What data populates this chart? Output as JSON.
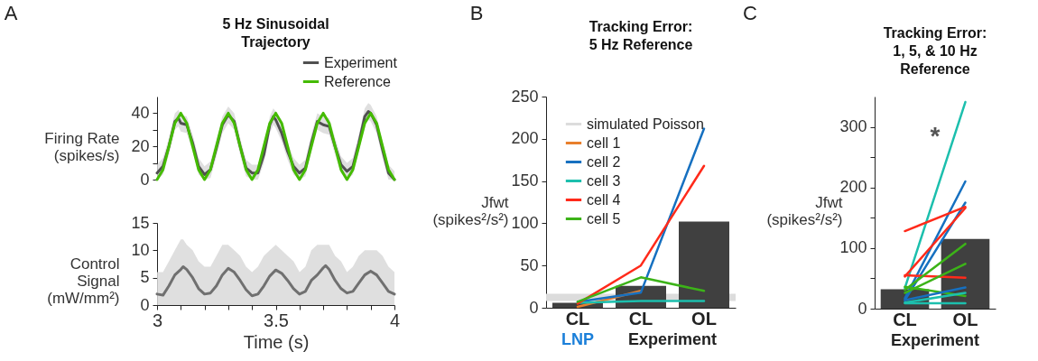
{
  "chart_data": [
    {
      "type": "line",
      "title": "5 Hz Sinusoidal\nTrajectory",
      "ylabel": "Firing Rate\n(spikes/s)",
      "annotations": [
        "A"
      ],
      "legend": "top right",
      "tick_labels": "y",
      "xlim": [
        3,
        4
      ],
      "ylim": [
        0,
        50
      ],
      "yticks": [
        0,
        {
          "value": 10,
          "label": null
        },
        20,
        {
          "value": 30,
          "label": null
        },
        40
      ],
      "series": [
        {
          "name": "Experiment",
          "color": "#505050",
          "x": [
            3,
            3.025,
            3.05,
            3.075,
            3.09,
            3.1,
            3.125,
            3.15,
            3.175,
            3.2,
            3.225,
            3.25,
            3.275,
            3.3,
            3.325,
            3.35,
            3.375,
            3.4,
            3.425,
            3.45,
            3.475,
            3.49,
            3.5,
            3.525,
            3.55,
            3.575,
            3.6,
            3.625,
            3.65,
            3.675,
            3.7,
            3.725,
            3.75,
            3.775,
            3.8,
            3.825,
            3.85,
            3.875,
            3.89,
            3.9,
            3.925,
            3.95,
            3.975,
            4
          ],
          "values": [
            4,
            8,
            20,
            35,
            37,
            34,
            33,
            22,
            8,
            3,
            6,
            19,
            33,
            39,
            35,
            20,
            7,
            4,
            4,
            15,
            33,
            38,
            36,
            28,
            17,
            8,
            4,
            7,
            22,
            35,
            33,
            32,
            20,
            9,
            5,
            8,
            22,
            38,
            41,
            40,
            33,
            18,
            4,
            0
          ],
          "lower": [
            0,
            3,
            15,
            30,
            32,
            29,
            28,
            17,
            3,
            0,
            1,
            14,
            28,
            34,
            30,
            15,
            2,
            0,
            0,
            10,
            28,
            33,
            31,
            23,
            12,
            3,
            0,
            2,
            17,
            30,
            28,
            27,
            15,
            4,
            0,
            3,
            17,
            33,
            36,
            35,
            28,
            13,
            0,
            0
          ],
          "upper": [
            9,
            13,
            25,
            40,
            42,
            39,
            38,
            27,
            13,
            8,
            11,
            24,
            38,
            44,
            40,
            25,
            12,
            9,
            9,
            20,
            38,
            43,
            41,
            33,
            22,
            13,
            9,
            12,
            27,
            40,
            38,
            37,
            25,
            14,
            10,
            13,
            27,
            43,
            46,
            45,
            38,
            23,
            9,
            5
          ]
        },
        {
          "name": "Reference",
          "color": "#44bb00",
          "x": [
            3,
            3.025,
            3.05,
            3.075,
            3.1,
            3.125,
            3.15,
            3.175,
            3.2,
            3.225,
            3.25,
            3.275,
            3.3,
            3.325,
            3.35,
            3.375,
            3.4,
            3.425,
            3.45,
            3.475,
            3.5,
            3.525,
            3.55,
            3.575,
            3.6,
            3.625,
            3.65,
            3.675,
            3.7,
            3.725,
            3.75,
            3.775,
            3.8,
            3.825,
            3.85,
            3.875,
            3.9,
            3.925,
            3.95,
            3.975,
            4
          ],
          "values": [
            0,
            6,
            20,
            34,
            40,
            34,
            20,
            6,
            0,
            6,
            20,
            34,
            40,
            34,
            20,
            6,
            0,
            6,
            20,
            34,
            40,
            34,
            20,
            6,
            0,
            6,
            20,
            34,
            40,
            34,
            20,
            6,
            0,
            6,
            20,
            34,
            40,
            34,
            20,
            6,
            0
          ]
        }
      ]
    },
    {
      "type": "line",
      "xlabel": "Time (s)",
      "ylabel": "Control\nSignal\n(mW/mm²)",
      "xlim": [
        3,
        4
      ],
      "ylim": [
        0,
        15
      ],
      "yticks": [
        0,
        5,
        10,
        15
      ],
      "xticks": [
        3,
        {
          "value": 3.1,
          "label": null
        },
        {
          "value": 3.2,
          "label": null
        },
        {
          "value": 3.3,
          "label": null
        },
        {
          "value": 3.4,
          "label": null
        },
        3.5,
        {
          "value": 3.6,
          "label": null
        },
        {
          "value": 3.7,
          "label": null
        },
        {
          "value": 3.8,
          "label": null
        },
        {
          "value": 3.9,
          "label": null
        },
        4
      ],
      "series": [
        {
          "color": "#707070",
          "x": [
            3,
            3.025,
            3.05,
            3.075,
            3.1,
            3.11,
            3.125,
            3.15,
            3.175,
            3.2,
            3.225,
            3.25,
            3.275,
            3.3,
            3.325,
            3.35,
            3.375,
            3.4,
            3.425,
            3.45,
            3.475,
            3.5,
            3.525,
            3.55,
            3.575,
            3.6,
            3.625,
            3.65,
            3.675,
            3.7,
            3.71,
            3.725,
            3.75,
            3.775,
            3.8,
            3.825,
            3.85,
            3.875,
            3.9,
            3.925,
            3.95,
            3.975,
            4
          ],
          "values": [
            2,
            1.8,
            3.5,
            5.5,
            6.5,
            7,
            6.5,
            5,
            3,
            2,
            2.2,
            3.5,
            5.5,
            6.7,
            6,
            4.5,
            2.8,
            1.7,
            2,
            3.5,
            5.3,
            6.4,
            5.8,
            4.5,
            3,
            2,
            2.5,
            4.5,
            5.5,
            6.8,
            7.2,
            6.5,
            4.5,
            3,
            2.2,
            2.5,
            4,
            5.5,
            6.2,
            5.5,
            4,
            2.5,
            2
          ],
          "lower": [
            0,
            0,
            0,
            0,
            0,
            0,
            0,
            0,
            0,
            0,
            0,
            0,
            0,
            0,
            0,
            0,
            0,
            0,
            0,
            0,
            0,
            0,
            0,
            0,
            0,
            0,
            0,
            0,
            0,
            0,
            0,
            0,
            0,
            0,
            0,
            0,
            0,
            0,
            0,
            0,
            0,
            0,
            0
          ],
          "upper": [
            6,
            6,
            8,
            10,
            12,
            12,
            11,
            10,
            8,
            7,
            7,
            9,
            11,
            11,
            10,
            9,
            7,
            6,
            7,
            9,
            10,
            11,
            10,
            9,
            8,
            6,
            7,
            10,
            11,
            11,
            11,
            11,
            9,
            8,
            6,
            7,
            9,
            10,
            10,
            10,
            9,
            7,
            6
          ]
        }
      ]
    },
    {
      "type": "bar",
      "title": "Tracking Error:\n5 Hz Reference",
      "ylabel": "Jfwt\n(spikes²/s²)",
      "annotations": [
        "B",
        "LNP",
        "Experiment"
      ],
      "legend": "top left",
      "categories": [
        "CL",
        "CL",
        "OL"
      ],
      "ylim": [
        0,
        250
      ],
      "yticks": [
        0,
        50,
        100,
        150,
        200,
        250
      ],
      "bands": [
        {
          "axis": "y",
          "from": 8,
          "to": 16.5,
          "label": "simulated Poisson",
          "color": "#dcdcdc"
        }
      ],
      "series": [
        {
          "color": "#404040",
          "values": [
            6,
            26,
            102
          ]
        },
        {
          "type": "line",
          "name": "cell 1",
          "color": "#e87f2c",
          "values": [
            1,
            20,
            null
          ]
        },
        {
          "type": "line",
          "name": "cell 2",
          "color": "#1670c0",
          "values": [
            7,
            18,
            212
          ]
        },
        {
          "type": "line",
          "name": "cell 3",
          "color": "#1cbfad",
          "values": [
            6,
            8,
            8
          ]
        },
        {
          "type": "line",
          "name": "cell 4",
          "color": "#ff2a1a",
          "values": [
            5,
            50,
            168
          ]
        },
        {
          "type": "line",
          "name": "cell 5",
          "color": "#3cb318",
          "values": [
            7,
            36,
            20
          ]
        }
      ]
    },
    {
      "type": "bar",
      "title": "Tracking Error:\n1, 5, & 10 Hz\nReference",
      "ylabel": "Jfwt\n(spikes²/s²)",
      "annotations": [
        "C",
        "Experiment",
        "*"
      ],
      "categories": [
        "CL",
        "OL"
      ],
      "ylim": [
        0,
        350
      ],
      "yticks": [
        0,
        {
          "value": 50,
          "label": null
        },
        100,
        {
          "value": 150,
          "label": null
        },
        200,
        {
          "value": 250,
          "label": null
        },
        300
      ],
      "series": [
        {
          "color": "#404040",
          "values": [
            32,
            115
          ]
        },
        {
          "type": "line",
          "color": "#1cbfad",
          "values": [
            34,
            341
          ]
        },
        {
          "type": "line",
          "color": "#1670c0",
          "values": [
            17,
            210
          ]
        },
        {
          "type": "line",
          "color": "#1670c0",
          "values": [
            14,
            175
          ]
        },
        {
          "type": "line",
          "color": "#ff2a1a",
          "values": [
            128,
            168
          ]
        },
        {
          "type": "line",
          "color": "#ff2a1a",
          "values": [
            53,
            166
          ]
        },
        {
          "type": "line",
          "color": "#ff2a1a",
          "values": [
            55,
            51
          ]
        },
        {
          "type": "line",
          "color": "#3cb318",
          "values": [
            31,
            107
          ]
        },
        {
          "type": "line",
          "color": "#3cb318",
          "values": [
            26,
            74
          ]
        },
        {
          "type": "line",
          "color": "#3cb318",
          "values": [
            36,
            21
          ]
        },
        {
          "type": "line",
          "color": "#1670c0",
          "values": [
            14,
            35
          ]
        },
        {
          "type": "line",
          "color": "#1cbfad",
          "values": [
            10,
            26
          ]
        },
        {
          "type": "line",
          "color": "#1cbfad",
          "values": [
            9,
            9
          ]
        }
      ]
    }
  ]
}
